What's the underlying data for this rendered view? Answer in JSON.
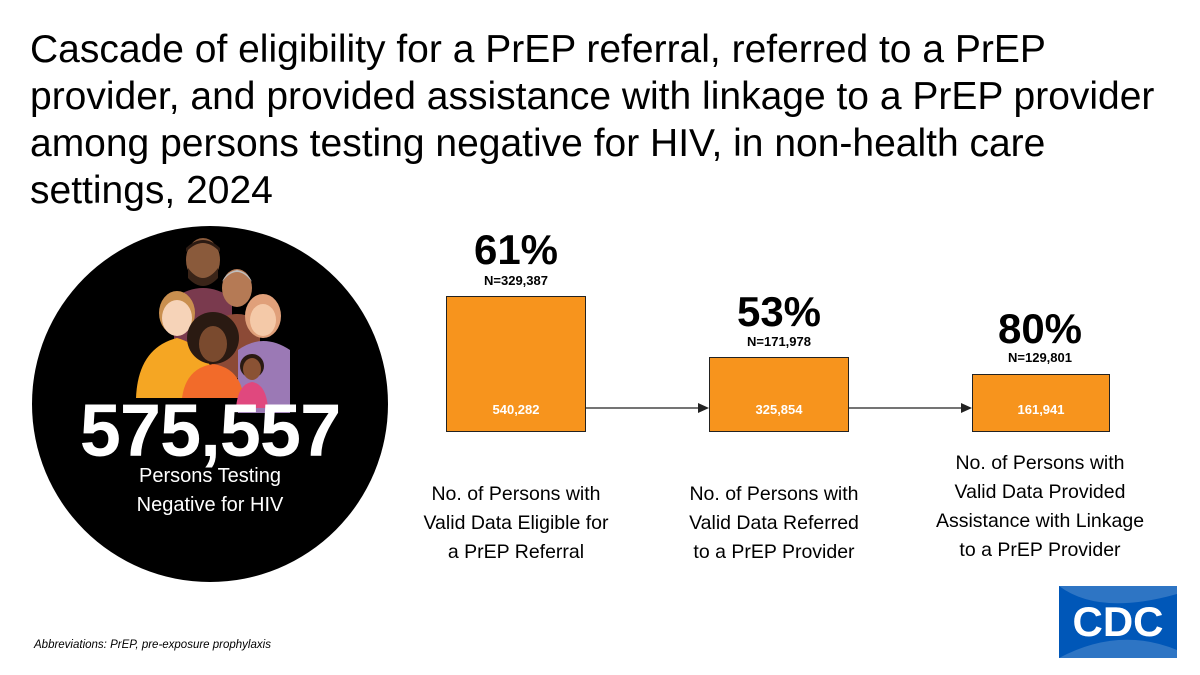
{
  "title": "Cascade of eligibility for a PrEP referral, referred to a PrEP provider, and provided assistance with linkage to a PrEP provider among persons testing negative for HIV, in non-health care settings, 2024",
  "total": {
    "value": "575,557",
    "label_line1": "Persons Testing",
    "label_line2": "Negative for HIV"
  },
  "steps": [
    {
      "percent": "61%",
      "n_label": "N=329,387",
      "box_value": "540,282",
      "desc_lines": [
        "No. of Persons with",
        "Valid Data Eligible for",
        "a PrEP Referral"
      ]
    },
    {
      "percent": "53%",
      "n_label": "N=171,978",
      "box_value": "325,854",
      "desc_lines": [
        "No. of Persons with",
        "Valid Data Referred",
        "to a PrEP Provider"
      ]
    },
    {
      "percent": "80%",
      "n_label": "N=129,801",
      "box_value": "161,941",
      "desc_lines": [
        "No. of Persons with",
        "Valid Data Provided",
        "Assistance with Linkage",
        "to a PrEP Provider"
      ]
    }
  ],
  "footnote": "Abbreviations: PrEP, pre-exposure prophylaxis",
  "logo_text": "CDC",
  "colors": {
    "bar": "#f7941d",
    "circle": "#000000",
    "logo": "#0057b8",
    "arrow": "#222222"
  },
  "chart_data": {
    "type": "bar",
    "title": "Cascade of eligibility for a PrEP referral, referred to a PrEP provider, and provided assistance with linkage to a PrEP provider among persons testing negative for HIV, in non-health care settings, 2024",
    "categories": [
      "No. of Persons with Valid Data Eligible for a PrEP Referral",
      "No. of Persons with Valid Data Referred to a PrEP Provider",
      "No. of Persons with Valid Data Provided Assistance with Linkage to a PrEP Provider"
    ],
    "values": [
      540282,
      325854,
      161941
    ],
    "percents": [
      61,
      53,
      80
    ],
    "n_values": [
      329387,
      171978,
      129801
    ],
    "total": 575557,
    "xlabel": "",
    "ylabel": ""
  }
}
